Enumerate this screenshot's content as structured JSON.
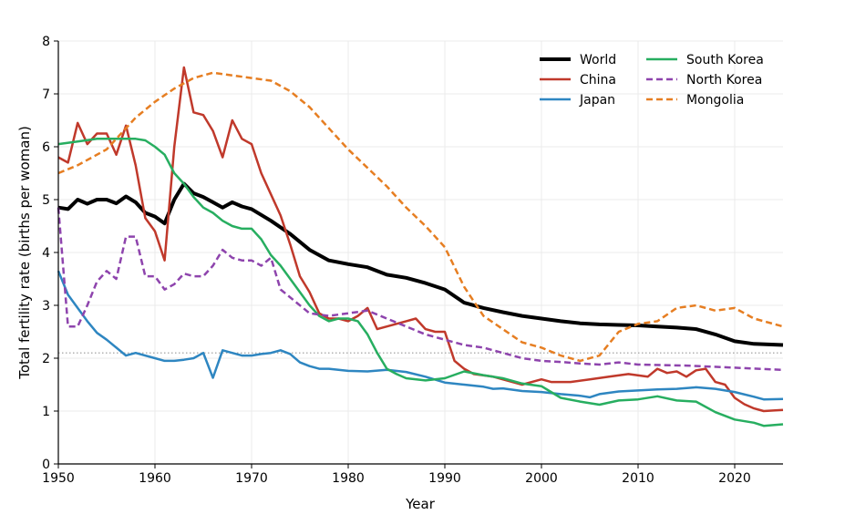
{
  "chart_data": {
    "type": "line",
    "title": "",
    "xlabel": "Year",
    "ylabel": "Total fertility rate (births per woman)",
    "xlim": [
      1950,
      2025
    ],
    "ylim": [
      0,
      8
    ],
    "xticks": [
      1950,
      1960,
      1970,
      1980,
      1990,
      2000,
      2010,
      2020
    ],
    "yticks": [
      0,
      1,
      2,
      3,
      4,
      5,
      6,
      7,
      8
    ],
    "grid": true,
    "legend_position": "top-right",
    "reference_line": {
      "y": 2.1,
      "style": "dotted",
      "color": "#999999"
    },
    "series": [
      {
        "name": "World",
        "color": "#000000",
        "dash": "solid",
        "width": 4,
        "x": [
          1950,
          1951,
          1952,
          1953,
          1954,
          1955,
          1956,
          1957,
          1958,
          1959,
          1960,
          1961,
          1962,
          1963,
          1964,
          1965,
          1966,
          1967,
          1968,
          1969,
          1970,
          1972,
          1974,
          1976,
          1978,
          1980,
          1982,
          1984,
          1986,
          1988,
          1990,
          1992,
          1994,
          1996,
          1998,
          2000,
          2002,
          2004,
          2006,
          2008,
          2010,
          2012,
          2014,
          2016,
          2018,
          2020,
          2022,
          2025
        ],
        "y": [
          4.85,
          4.82,
          5.0,
          4.92,
          5.0,
          5.0,
          4.93,
          5.06,
          4.95,
          4.75,
          4.68,
          4.55,
          5.0,
          5.3,
          5.12,
          5.05,
          4.95,
          4.85,
          4.95,
          4.87,
          4.82,
          4.6,
          4.35,
          4.05,
          3.85,
          3.78,
          3.72,
          3.58,
          3.52,
          3.42,
          3.3,
          3.05,
          2.95,
          2.87,
          2.8,
          2.75,
          2.7,
          2.66,
          2.64,
          2.63,
          2.62,
          2.6,
          2.58,
          2.55,
          2.45,
          2.32,
          2.27,
          2.25
        ]
      },
      {
        "name": "China",
        "color": "#c0392b",
        "dash": "solid",
        "width": 2.5,
        "x": [
          1950,
          1951,
          1952,
          1953,
          1954,
          1955,
          1956,
          1957,
          1958,
          1959,
          1960,
          1961,
          1962,
          1963,
          1964,
          1965,
          1966,
          1967,
          1968,
          1969,
          1970,
          1971,
          1972,
          1973,
          1974,
          1975,
          1976,
          1977,
          1978,
          1979,
          1980,
          1981,
          1982,
          1983,
          1984,
          1985,
          1986,
          1987,
          1988,
          1989,
          1990,
          1991,
          1992,
          1993,
          1995,
          1998,
          2000,
          2001,
          2003,
          2005,
          2007,
          2009,
          2011,
          2012,
          2013,
          2014,
          2015,
          2016,
          2017,
          2018,
          2019,
          2020,
          2021,
          2022,
          2023,
          2025
        ],
        "y": [
          5.8,
          5.7,
          6.45,
          6.05,
          6.25,
          6.25,
          5.85,
          6.4,
          5.65,
          4.65,
          4.4,
          3.85,
          6.0,
          7.5,
          6.65,
          6.6,
          6.3,
          5.8,
          6.5,
          6.15,
          6.05,
          5.5,
          5.1,
          4.7,
          4.15,
          3.55,
          3.25,
          2.85,
          2.75,
          2.75,
          2.7,
          2.8,
          2.95,
          2.55,
          2.6,
          2.65,
          2.7,
          2.75,
          2.55,
          2.5,
          2.5,
          1.95,
          1.8,
          1.7,
          1.65,
          1.5,
          1.6,
          1.55,
          1.55,
          1.6,
          1.65,
          1.7,
          1.65,
          1.8,
          1.72,
          1.75,
          1.65,
          1.77,
          1.8,
          1.55,
          1.5,
          1.25,
          1.13,
          1.05,
          1.0,
          1.02
        ]
      },
      {
        "name": "Japan",
        "color": "#2e86c1",
        "dash": "solid",
        "width": 2.5,
        "x": [
          1950,
          1951,
          1952,
          1953,
          1954,
          1955,
          1956,
          1957,
          1958,
          1960,
          1961,
          1962,
          1963,
          1964,
          1965,
          1966,
          1967,
          1968,
          1969,
          1970,
          1971,
          1972,
          1973,
          1974,
          1975,
          1976,
          1977,
          1978,
          1980,
          1982,
          1984,
          1986,
          1988,
          1990,
          1992,
          1994,
          1995,
          1996,
          1998,
          2000,
          2002,
          2004,
          2005,
          2006,
          2008,
          2010,
          2012,
          2014,
          2016,
          2018,
          2020,
          2022,
          2023,
          2025
        ],
        "y": [
          3.65,
          3.2,
          2.95,
          2.7,
          2.48,
          2.35,
          2.2,
          2.05,
          2.1,
          2.0,
          1.95,
          1.95,
          1.97,
          2.0,
          2.1,
          1.63,
          2.15,
          2.1,
          2.05,
          2.05,
          2.08,
          2.1,
          2.15,
          2.08,
          1.92,
          1.85,
          1.8,
          1.8,
          1.76,
          1.75,
          1.78,
          1.74,
          1.65,
          1.54,
          1.5,
          1.46,
          1.42,
          1.43,
          1.38,
          1.36,
          1.32,
          1.29,
          1.26,
          1.32,
          1.37,
          1.39,
          1.41,
          1.42,
          1.45,
          1.42,
          1.36,
          1.27,
          1.22,
          1.23
        ]
      },
      {
        "name": "South Korea",
        "color": "#27ae60",
        "dash": "solid",
        "width": 2.5,
        "x": [
          1950,
          1952,
          1954,
          1956,
          1958,
          1959,
          1960,
          1961,
          1962,
          1963,
          1964,
          1965,
          1966,
          1967,
          1968,
          1969,
          1970,
          1971,
          1972,
          1973,
          1974,
          1975,
          1976,
          1977,
          1978,
          1979,
          1980,
          1981,
          1982,
          1983,
          1984,
          1985,
          1986,
          1988,
          1990,
          1992,
          1994,
          1996,
          1998,
          2000,
          2002,
          2004,
          2006,
          2008,
          2010,
          2012,
          2014,
          2016,
          2018,
          2020,
          2022,
          2023,
          2025
        ],
        "y": [
          6.05,
          6.1,
          6.15,
          6.15,
          6.15,
          6.12,
          6.0,
          5.85,
          5.5,
          5.3,
          5.05,
          4.85,
          4.75,
          4.6,
          4.5,
          4.45,
          4.45,
          4.25,
          3.95,
          3.75,
          3.5,
          3.25,
          3.0,
          2.8,
          2.7,
          2.75,
          2.75,
          2.7,
          2.45,
          2.1,
          1.8,
          1.7,
          1.62,
          1.58,
          1.62,
          1.75,
          1.68,
          1.62,
          1.52,
          1.47,
          1.25,
          1.18,
          1.12,
          1.2,
          1.22,
          1.28,
          1.2,
          1.18,
          0.98,
          0.84,
          0.78,
          0.72,
          0.75
        ]
      },
      {
        "name": "North Korea",
        "color": "#8e44ad",
        "dash": "dashed",
        "width": 2.5,
        "x": [
          1950,
          1951,
          1952,
          1953,
          1954,
          1955,
          1956,
          1957,
          1958,
          1959,
          1960,
          1961,
          1962,
          1963,
          1964,
          1965,
          1966,
          1967,
          1968,
          1969,
          1970,
          1971,
          1972,
          1973,
          1974,
          1976,
          1978,
          1980,
          1982,
          1984,
          1986,
          1988,
          1990,
          1992,
          1994,
          1996,
          1998,
          2000,
          2002,
          2004,
          2006,
          2008,
          2010,
          2015,
          2020,
          2025
        ],
        "y": [
          4.85,
          2.6,
          2.6,
          3.0,
          3.45,
          3.65,
          3.5,
          4.3,
          4.3,
          3.55,
          3.55,
          3.3,
          3.4,
          3.6,
          3.55,
          3.55,
          3.75,
          4.05,
          3.9,
          3.85,
          3.85,
          3.75,
          3.9,
          3.3,
          3.15,
          2.85,
          2.8,
          2.85,
          2.9,
          2.75,
          2.6,
          2.45,
          2.35,
          2.25,
          2.2,
          2.1,
          2.0,
          1.95,
          1.93,
          1.9,
          1.88,
          1.92,
          1.88,
          1.86,
          1.82,
          1.78
        ]
      },
      {
        "name": "Mongolia",
        "color": "#e67e22",
        "dash": "dashed",
        "width": 2.5,
        "x": [
          1950,
          1952,
          1955,
          1958,
          1960,
          1962,
          1964,
          1966,
          1968,
          1970,
          1972,
          1974,
          1976,
          1978,
          1980,
          1982,
          1984,
          1986,
          1988,
          1990,
          1992,
          1994,
          1996,
          1998,
          2000,
          2002,
          2004,
          2006,
          2008,
          2010,
          2012,
          2014,
          2016,
          2018,
          2020,
          2022,
          2025
        ],
        "y": [
          5.5,
          5.65,
          5.95,
          6.55,
          6.85,
          7.1,
          7.3,
          7.4,
          7.35,
          7.3,
          7.25,
          7.05,
          6.75,
          6.35,
          5.95,
          5.6,
          5.25,
          4.85,
          4.5,
          4.1,
          3.35,
          2.8,
          2.55,
          2.3,
          2.2,
          2.05,
          1.95,
          2.05,
          2.5,
          2.65,
          2.7,
          2.95,
          3.0,
          2.9,
          2.95,
          2.75,
          2.6
        ]
      }
    ]
  }
}
